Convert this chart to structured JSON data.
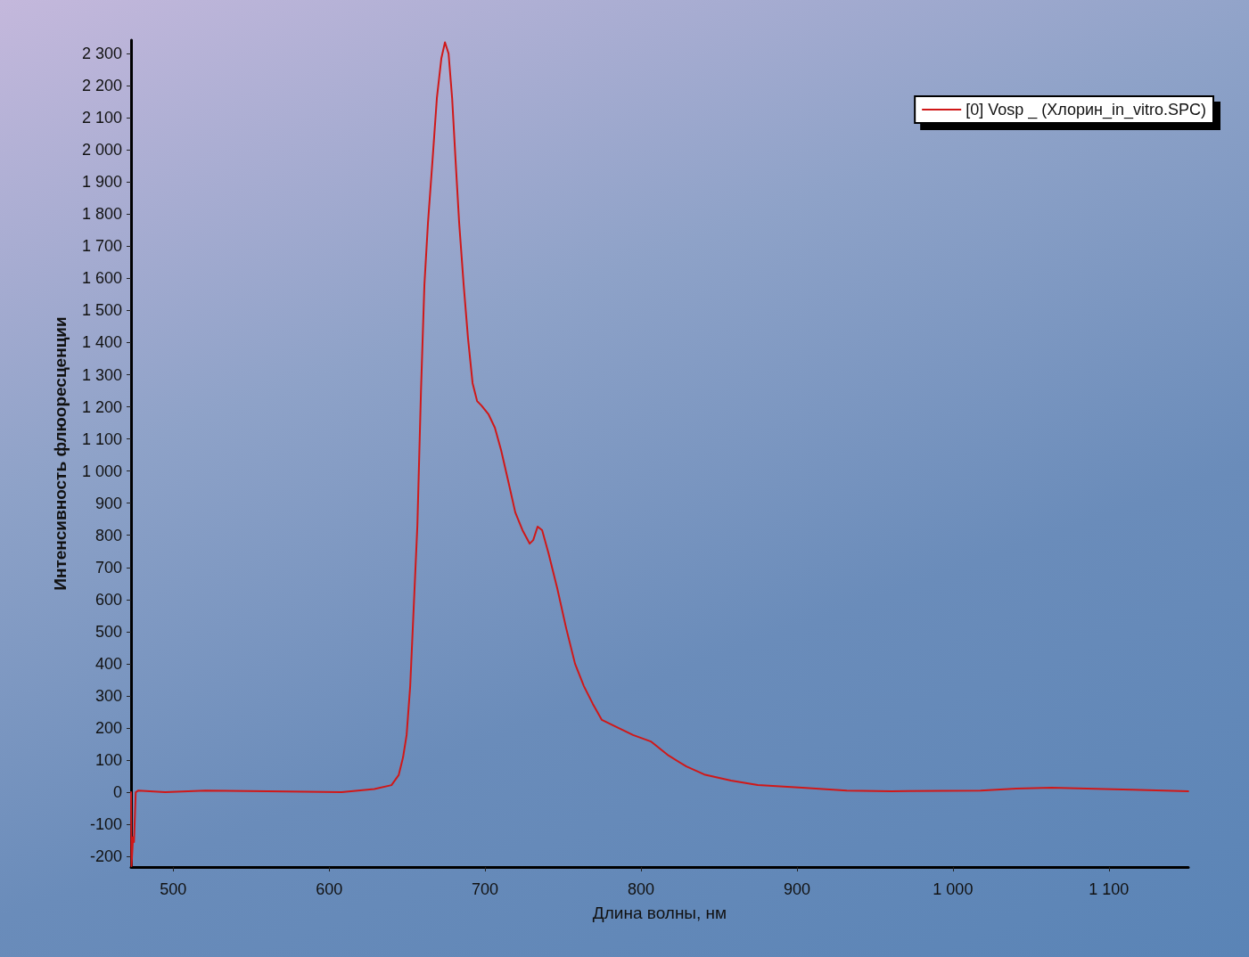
{
  "chart_data": {
    "type": "line",
    "xlabel": "Длина волны, нм",
    "ylabel": "Интенсивность флюоресценции",
    "xlim": [
      473,
      1151
    ],
    "ylim": [
      -233,
      2342
    ],
    "xticks": [
      500,
      600,
      700,
      800,
      900,
      {
        "value": 1000,
        "label": "1 000"
      },
      {
        "value": 1100,
        "label": "1 100"
      }
    ],
    "yticks": [
      -200,
      -100,
      0,
      100,
      200,
      300,
      400,
      500,
      600,
      700,
      800,
      900,
      {
        "value": 1000,
        "label": "1 000"
      },
      {
        "value": 1100,
        "label": "1 100"
      },
      {
        "value": 1200,
        "label": "1 200"
      },
      {
        "value": 1300,
        "label": "1 300"
      },
      {
        "value": 1400,
        "label": "1 400"
      },
      {
        "value": 1500,
        "label": "1 500"
      },
      {
        "value": 1600,
        "label": "1 600"
      },
      {
        "value": 1700,
        "label": "1 700"
      },
      {
        "value": 1800,
        "label": "1 800"
      },
      {
        "value": 1900,
        "label": "1 900"
      },
      {
        "value": 2000,
        "label": "2 000"
      },
      {
        "value": 2100,
        "label": "2 100"
      },
      {
        "value": 2200,
        "label": "2 200"
      },
      {
        "value": 2300,
        "label": "2 300"
      }
    ],
    "grid": false,
    "legend": "top right",
    "marker": "none",
    "line_style": "solid",
    "series": [
      {
        "name": "[0] Vosp _ (Хлорин_in_vitro.SPC)",
        "color": "#d01818",
        "x": [
          473,
          473.3,
          474.3,
          474.9,
          476,
          477.7,
          494.9,
          520.6,
          560.6,
          608,
          629,
          640,
          644.6,
          647.4,
          649.7,
          652,
          654.3,
          656.6,
          658.9,
          661.1,
          663.4,
          666.3,
          669.1,
          672,
          674.3,
          676.6,
          678.9,
          681.1,
          683.4,
          686.3,
          689.1,
          692,
          694.9,
          697.7,
          702.3,
          706.3,
          710.3,
          714.9,
          719.4,
          724,
          728.6,
          730.9,
          733.7,
          736.6,
          740.6,
          746.3,
          752,
          757.7,
          763.4,
          769.1,
          774.9,
          783.4,
          794.9,
          806.3,
          817.7,
          829.1,
          840.6,
          857.7,
          874.9,
          903.4,
          932,
          960.6,
          1017.7,
          1040.6,
          1063.4,
          1086,
          1114.9,
          1150.9
        ],
        "values": [
          0,
          -230,
          -140,
          -155,
          0,
          5,
          0,
          5,
          3,
          0,
          10,
          22,
          53,
          108,
          178,
          330,
          580,
          830,
          1246,
          1579,
          1773,
          1967,
          2161,
          2286,
          2335,
          2300,
          2161,
          1967,
          1773,
          1579,
          1412,
          1274,
          1218,
          1204,
          1176,
          1135,
          1065,
          968,
          871,
          816,
          774,
          785,
          827,
          816,
          746,
          635,
          511,
          400,
          330,
          275,
          225,
          205,
          178,
          158,
          114,
          80,
          55,
          36,
          22,
          14,
          5,
          3,
          5,
          11,
          14,
          11,
          8,
          3
        ]
      }
    ]
  }
}
